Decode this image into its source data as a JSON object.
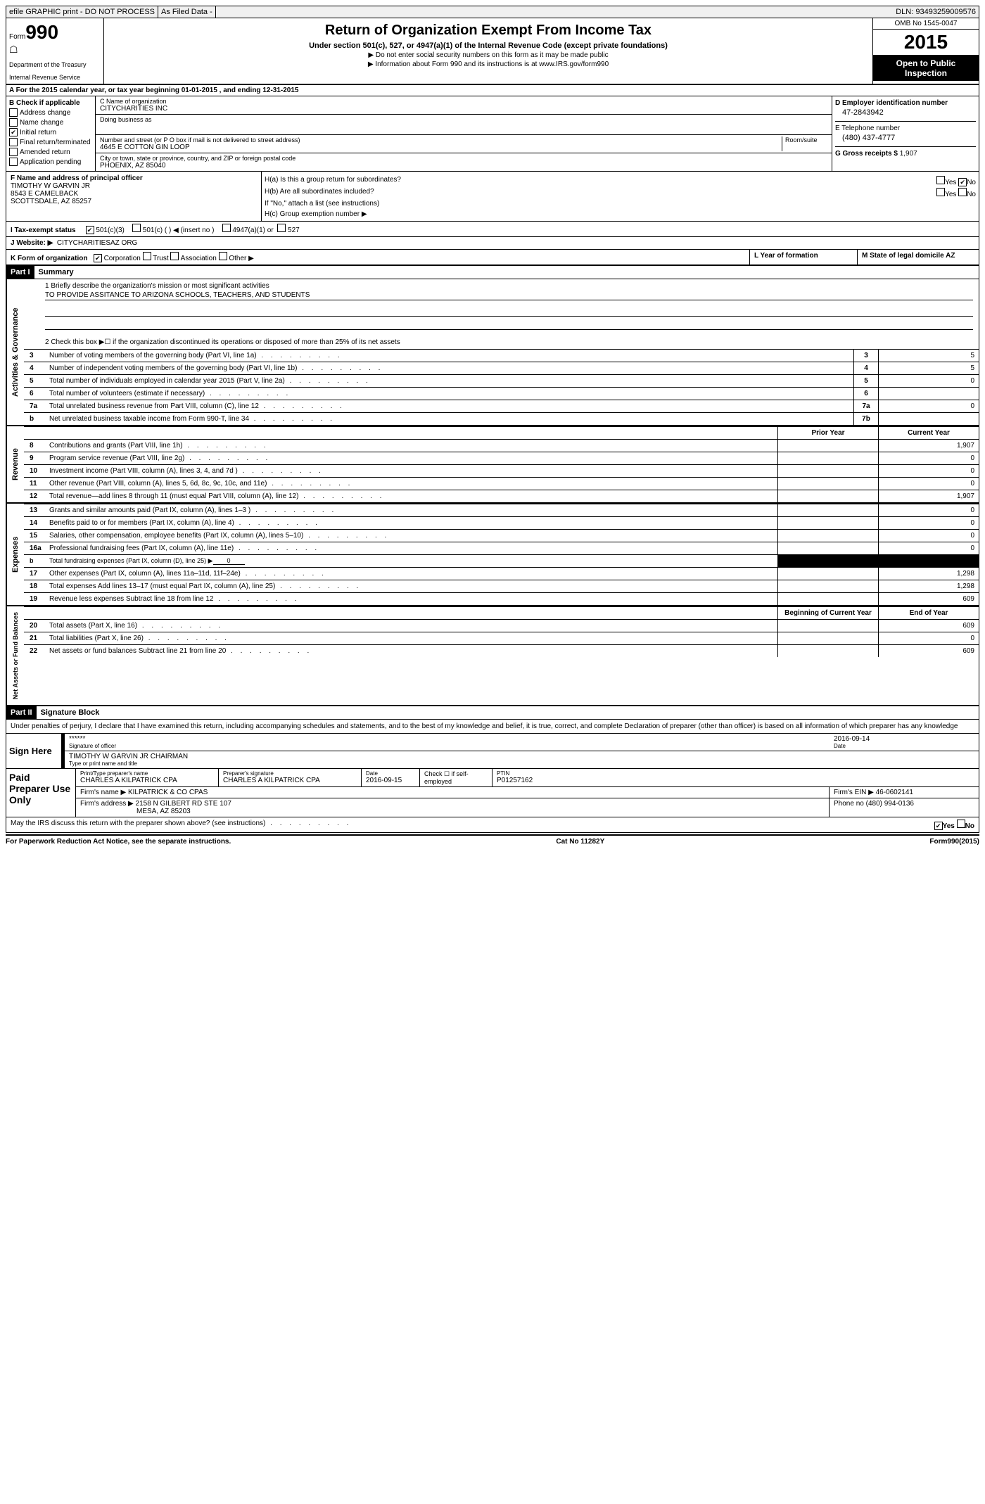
{
  "header": {
    "efile": "efile GRAPHIC print - DO NOT PROCESS",
    "asfiled": "As Filed Data -",
    "dln": "DLN: 93493259009576"
  },
  "form": {
    "form_label": "Form",
    "number": "990",
    "dept1": "Department of the Treasury",
    "dept2": "Internal Revenue Service",
    "title": "Return of Organization Exempt From Income Tax",
    "subtitle": "Under section 501(c), 527, or 4947(a)(1) of the Internal Revenue Code (except private foundations)",
    "note1": "▶ Do not enter social security numbers on this form as it may be made public",
    "note2": "▶ Information about Form 990 and its instructions is at www.IRS.gov/form990",
    "omb": "OMB No 1545-0047",
    "year": "2015",
    "inspection": "Open to Public Inspection"
  },
  "rowA": "A   For the 2015 calendar year, or tax year beginning 01-01-2015     , and ending 12-31-2015",
  "sectionB": {
    "label": "B  Check if applicable",
    "items": [
      "Address change",
      "Name change",
      "Initial return",
      "Final return/terminated",
      "Amended return",
      "Application pending"
    ],
    "checked_idx": 2
  },
  "sectionC": {
    "name_label": "C Name of organization",
    "name": "CITYCHARITIES INC",
    "dba_label": "Doing business as",
    "dba": "",
    "street_label": "Number and street (or P O  box if mail is not delivered to street address)",
    "street": "4645 E COTTON GIN LOOP",
    "room_label": "Room/suite",
    "room": "",
    "city_label": "City or town, state or province, country, and ZIP or foreign postal code",
    "city": "PHOENIX, AZ  85040"
  },
  "sectionD": {
    "label": "D Employer identification number",
    "ein": "47-2843942",
    "tel_label": "E Telephone number",
    "tel": "(480) 437-4777",
    "gross_label": "G Gross receipts $",
    "gross": "1,907"
  },
  "sectionF": {
    "label": "F    Name and address of principal officer",
    "name": "TIMOTHY W GARVIN JR",
    "addr1": "8543 E CAMELBACK",
    "addr2": "SCOTTSDALE, AZ  85257"
  },
  "sectionH": {
    "ha_label": "H(a)  Is this a group return for subordinates?",
    "ha_yes": "Yes",
    "ha_no": "No",
    "hb_label": "H(b)  Are all subordinates included?",
    "hb_note": "If \"No,\" attach a list  (see instructions)",
    "hc_label": "H(c)   Group exemption number ▶"
  },
  "rowI": {
    "label": "I   Tax-exempt status",
    "opt1": "501(c)(3)",
    "opt2": "501(c) (  ) ◀ (insert no )",
    "opt3": "4947(a)(1) or",
    "opt4": "527"
  },
  "rowJ": {
    "label": "J   Website: ▶",
    "value": "CITYCHARITIESAZ ORG"
  },
  "rowK": {
    "label": "K Form of organization",
    "corp": "Corporation",
    "trust": "Trust",
    "assoc": "Association",
    "other": "Other ▶",
    "L": "L Year of formation",
    "M": "M State of legal domicile  AZ"
  },
  "part1": {
    "header": "Part I",
    "title": "Summary"
  },
  "summary_text": {
    "line1_label": "1 Briefly describe the organization's mission or most significant activities",
    "line1": "TO PROVIDE ASSITANCE TO ARIZONA SCHOOLS, TEACHERS, AND STUDENTS",
    "line2": "2  Check this box ▶☐ if the organization discontinued its operations or disposed of more than 25% of its net assets"
  },
  "gov_rows": [
    {
      "n": "3",
      "label": "Number of voting members of the governing body (Part VI, line 1a)",
      "box": "3",
      "val": "5"
    },
    {
      "n": "4",
      "label": "Number of independent voting members of the governing body (Part VI, line 1b)",
      "box": "4",
      "val": "5"
    },
    {
      "n": "5",
      "label": "Total number of individuals employed in calendar year 2015 (Part V, line 2a)",
      "box": "5",
      "val": "0"
    },
    {
      "n": "6",
      "label": "Total number of volunteers (estimate if necessary)",
      "box": "6",
      "val": ""
    },
    {
      "n": "7a",
      "label": "Total unrelated business revenue from Part VIII, column (C), line 12",
      "box": "7a",
      "val": "0"
    },
    {
      "n": "b",
      "label": "Net unrelated business taxable income from Form 990-T, line 34",
      "box": "7b",
      "val": ""
    }
  ],
  "cols": {
    "prior": "Prior Year",
    "current": "Current Year",
    "begin": "Beginning of Current Year",
    "end": "End of Year"
  },
  "revenue_rows": [
    {
      "n": "8",
      "label": "Contributions and grants (Part VIII, line 1h)",
      "p": "",
      "c": "1,907"
    },
    {
      "n": "9",
      "label": "Program service revenue (Part VIII, line 2g)",
      "p": "",
      "c": "0"
    },
    {
      "n": "10",
      "label": "Investment income (Part VIII, column (A), lines 3, 4, and 7d )",
      "p": "",
      "c": "0"
    },
    {
      "n": "11",
      "label": "Other revenue (Part VIII, column (A), lines 5, 6d, 8c, 9c, 10c, and 11e)",
      "p": "",
      "c": "0"
    },
    {
      "n": "12",
      "label": "Total revenue—add lines 8 through 11 (must equal Part VIII, column (A), line 12)",
      "p": "",
      "c": "1,907"
    }
  ],
  "expense_rows": [
    {
      "n": "13",
      "label": "Grants and similar amounts paid (Part IX, column (A), lines 1–3 )",
      "p": "",
      "c": "0"
    },
    {
      "n": "14",
      "label": "Benefits paid to or for members (Part IX, column (A), line 4)",
      "p": "",
      "c": "0"
    },
    {
      "n": "15",
      "label": "Salaries, other compensation, employee benefits (Part IX, column (A), lines 5–10)",
      "p": "",
      "c": "0"
    },
    {
      "n": "16a",
      "label": "Professional fundraising fees (Part IX, column (A), line 11e)",
      "p": "",
      "c": "0"
    }
  ],
  "expense_b": {
    "n": "b",
    "label": "Total fundraising expenses (Part IX, column (D), line 25) ▶",
    "val": "0"
  },
  "expense_rows2": [
    {
      "n": "17",
      "label": "Other expenses (Part IX, column (A), lines 11a–11d, 11f–24e)",
      "p": "",
      "c": "1,298"
    },
    {
      "n": "18",
      "label": "Total expenses  Add lines 13–17 (must equal Part IX, column (A), line 25)",
      "p": "",
      "c": "1,298"
    },
    {
      "n": "19",
      "label": "Revenue less expenses  Subtract line 18 from line 12",
      "p": "",
      "c": "609"
    }
  ],
  "netassets_rows": [
    {
      "n": "20",
      "label": "Total assets (Part X, line 16)",
      "p": "",
      "c": "609"
    },
    {
      "n": "21",
      "label": "Total liabilities (Part X, line 26)",
      "p": "",
      "c": "0"
    },
    {
      "n": "22",
      "label": "Net assets or fund balances  Subtract line 21 from line 20",
      "p": "",
      "c": "609"
    }
  ],
  "part2": {
    "header": "Part II",
    "title": "Signature Block"
  },
  "sig": {
    "perjury": "Under penalties of perjury, I declare that I have examined this return, including accompanying schedules and statements, and to the best of my knowledge and belief, it is true, correct, and complete  Declaration of preparer (other than officer) is based on all information of which preparer has any knowledge",
    "sign_here": "Sign Here",
    "stars": "******",
    "sig_label": "Signature of officer",
    "date": "2016-09-14",
    "date_label": "Date",
    "name": "TIMOTHY W GARVIN JR CHAIRMAN",
    "name_label": "Type or print name and title"
  },
  "prep": {
    "label": "Paid Preparer Use Only",
    "name_lbl": "Print/Type preparer's name",
    "name": "CHARLES A KILPATRICK CPA",
    "sig_lbl": "Preparer's signature",
    "sig": "CHARLES A KILPATRICK CPA",
    "date_lbl": "Date",
    "date": "2016-09-15",
    "check_lbl": "Check ☐ if self-employed",
    "ptin_lbl": "PTIN",
    "ptin": "P01257162",
    "firm_name_lbl": "Firm's name      ▶",
    "firm_name": "KILPATRICK & CO CPAS",
    "firm_ein_lbl": "Firm's EIN ▶",
    "firm_ein": "46-0602141",
    "firm_addr_lbl": "Firm's address ▶",
    "firm_addr": "2158 N GILBERT RD STE 107",
    "firm_addr2": "MESA, AZ  85203",
    "phone_lbl": "Phone no",
    "phone": "(480) 994-0136",
    "discuss": "May the IRS discuss this return with the preparer shown above? (see instructions)",
    "yes": "Yes",
    "no": "No"
  },
  "footer": {
    "left": "For Paperwork Reduction Act Notice, see the separate instructions.",
    "mid": "Cat No  11282Y",
    "right": "Form990(2015)"
  },
  "sidelabels": {
    "gov": "Activities & Governance",
    "rev": "Revenue",
    "exp": "Expenses",
    "net": "Net Assets or Fund Balances"
  }
}
